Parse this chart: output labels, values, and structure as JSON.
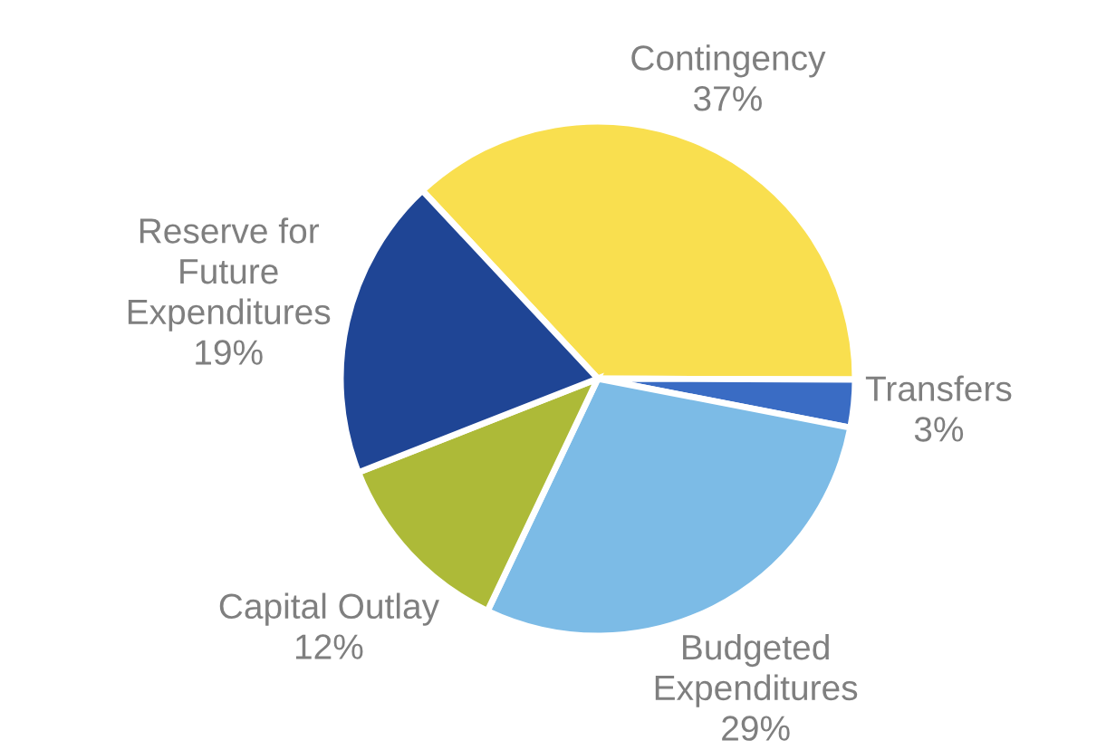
{
  "chart_data": {
    "type": "pie",
    "categories": [
      "Contingency",
      "Transfers",
      "Budgeted\nExpenditures",
      "Capital Outlay",
      "Reserve for\nFuture\nExpenditures"
    ],
    "values": [
      37,
      3,
      29,
      12,
      19
    ],
    "value_labels": [
      "37%",
      "3%",
      "29%",
      "12%",
      "19%"
    ],
    "colors": [
      "#f9df4f",
      "#3a6cc4",
      "#7cbbe6",
      "#adba38",
      "#1f4595"
    ],
    "legend": false
  }
}
